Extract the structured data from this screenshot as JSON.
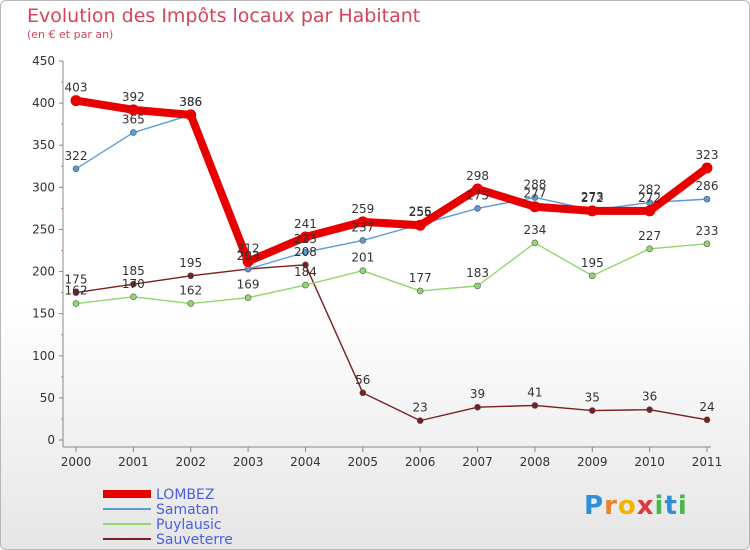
{
  "header": {
    "title": "Evolution des Impôts locaux par Habitant",
    "subtitle": "(en € et par an)"
  },
  "brand": {
    "letters": [
      "P",
      "r",
      "o",
      "x",
      "i",
      "t",
      "i"
    ],
    "colors": [
      "#2f8fd8",
      "#e8832a",
      "#f2b400",
      "#e03a3a",
      "#49b84a",
      "#2f8fd8",
      "#49b84a"
    ]
  },
  "chart_data": {
    "type": "line",
    "title": "Evolution des Impôts locaux par Habitant",
    "subtitle": "(en € et par an)",
    "xlabel": "",
    "ylabel": "",
    "ylim": [
      0,
      450
    ],
    "yticks": [
      0,
      50,
      100,
      150,
      200,
      250,
      300,
      350,
      400,
      450
    ],
    "grid": false,
    "legend_position": "bottom-left",
    "categories": [
      "2000",
      "2001",
      "2002",
      "2003",
      "2004",
      "2005",
      "2006",
      "2007",
      "2008",
      "2009",
      "2010",
      "2011"
    ],
    "series": [
      {
        "name": "LOMBEZ",
        "color": "#e80000",
        "values": [
          403,
          392,
          386,
          212,
          241,
          259,
          255,
          298,
          277,
          272,
          272,
          323
        ]
      },
      {
        "name": "Samatan",
        "color": "#5b9bd5",
        "values": [
          322,
          365,
          386,
          203,
          223,
          237,
          256,
          275,
          288,
          273,
          282,
          286
        ]
      },
      {
        "name": "Puylausic",
        "color": "#8fd86a",
        "values": [
          162,
          170,
          162,
          169,
          184,
          201,
          177,
          183,
          234,
          195,
          227,
          233
        ]
      },
      {
        "name": "Sauveterre",
        "color": "#7a1f1f",
        "values": [
          175,
          185,
          195,
          203,
          208,
          56,
          23,
          39,
          41,
          35,
          36,
          24
        ]
      }
    ]
  }
}
